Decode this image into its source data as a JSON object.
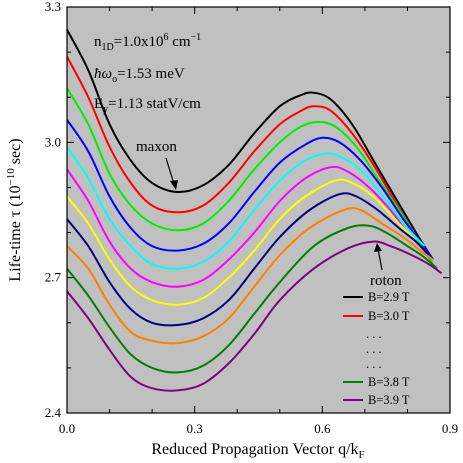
{
  "chart_data": {
    "type": "line",
    "xlabel": "Reduced Propagation Vector q/k",
    "xlabel_sub": "F",
    "ylabel": "Life-time τ (10",
    "ylabel_sup": "−10",
    "ylabel_tail": " sec)",
    "xlim": [
      0.0,
      0.9
    ],
    "ylim": [
      2.4,
      3.3
    ],
    "xticks": [
      0.0,
      0.3,
      0.6,
      0.9
    ],
    "xtick_labels": [
      "0.0",
      "0.3",
      "0.6",
      "0.9"
    ],
    "yticks": [
      2.4,
      2.7,
      3.0,
      3.3
    ],
    "ytick_labels": [
      "2.4",
      "2.7",
      "3.0",
      "3.3"
    ],
    "background": "#c0c0c0",
    "grid": false,
    "params": {
      "n_base": "n",
      "n_sub": "1D",
      "n_mid": "=1.0x10",
      "n_sup": "6",
      "n_unit": " cm",
      "n_unit_sup": "−1",
      "hw_text": "ħω",
      "hw_sub": "o",
      "hw_rest": "=1.53 meV",
      "e_base": "E",
      "e_sub": "y",
      "e_rest": "=1.13 statV/cm"
    },
    "annotations": {
      "maxon": "maxon",
      "roton": "roton"
    },
    "legend": {
      "placement": "bottom-right",
      "entries": [
        {
          "label": "B=2.9 T",
          "color": "#000000"
        },
        {
          "label": "B=3.0 T",
          "color": "#ff0000"
        },
        {
          "label": "B=3.8 T",
          "color": "#008000"
        },
        {
          "label": "B=3.9 T",
          "color": "#800080"
        }
      ],
      "dots": ". . ."
    },
    "series": [
      {
        "color": "#000000",
        "points": [
          [
            0.0,
            3.25
          ],
          [
            0.05,
            3.16
          ],
          [
            0.1,
            3.04
          ],
          [
            0.15,
            2.96
          ],
          [
            0.2,
            2.91
          ],
          [
            0.26,
            2.89
          ],
          [
            0.32,
            2.905
          ],
          [
            0.38,
            2.95
          ],
          [
            0.44,
            3.02
          ],
          [
            0.5,
            3.08
          ],
          [
            0.55,
            3.105
          ],
          [
            0.58,
            3.11
          ],
          [
            0.62,
            3.095
          ],
          [
            0.67,
            3.04
          ],
          [
            0.72,
            2.96
          ],
          [
            0.77,
            2.88
          ],
          [
            0.82,
            2.8
          ],
          [
            0.86,
            2.74
          ]
        ]
      },
      {
        "color": "#ff0000",
        "points": [
          [
            0.0,
            3.19
          ],
          [
            0.05,
            3.1
          ],
          [
            0.1,
            2.99
          ],
          [
            0.15,
            2.91
          ],
          [
            0.2,
            2.86
          ],
          [
            0.26,
            2.845
          ],
          [
            0.32,
            2.86
          ],
          [
            0.38,
            2.91
          ],
          [
            0.44,
            2.98
          ],
          [
            0.5,
            3.04
          ],
          [
            0.55,
            3.07
          ],
          [
            0.58,
            3.08
          ],
          [
            0.62,
            3.07
          ],
          [
            0.67,
            3.02
          ],
          [
            0.72,
            2.95
          ],
          [
            0.77,
            2.87
          ],
          [
            0.82,
            2.79
          ],
          [
            0.86,
            2.74
          ]
        ]
      },
      {
        "color": "#00ee00",
        "points": [
          [
            0.0,
            3.12
          ],
          [
            0.05,
            3.04
          ],
          [
            0.1,
            2.93
          ],
          [
            0.15,
            2.86
          ],
          [
            0.2,
            2.82
          ],
          [
            0.26,
            2.805
          ],
          [
            0.32,
            2.82
          ],
          [
            0.38,
            2.87
          ],
          [
            0.44,
            2.94
          ],
          [
            0.5,
            3.0
          ],
          [
            0.55,
            3.035
          ],
          [
            0.59,
            3.045
          ],
          [
            0.63,
            3.035
          ],
          [
            0.68,
            2.99
          ],
          [
            0.73,
            2.92
          ],
          [
            0.78,
            2.85
          ],
          [
            0.82,
            2.79
          ],
          [
            0.86,
            2.73
          ]
        ]
      },
      {
        "color": "#0000ff",
        "points": [
          [
            0.0,
            3.05
          ],
          [
            0.05,
            2.98
          ],
          [
            0.1,
            2.88
          ],
          [
            0.15,
            2.81
          ],
          [
            0.2,
            2.77
          ],
          [
            0.26,
            2.76
          ],
          [
            0.32,
            2.775
          ],
          [
            0.38,
            2.82
          ],
          [
            0.44,
            2.89
          ],
          [
            0.5,
            2.955
          ],
          [
            0.56,
            2.995
          ],
          [
            0.6,
            3.01
          ],
          [
            0.64,
            3.0
          ],
          [
            0.69,
            2.96
          ],
          [
            0.74,
            2.9
          ],
          [
            0.79,
            2.83
          ],
          [
            0.83,
            2.78
          ],
          [
            0.86,
            2.74
          ]
        ]
      },
      {
        "color": "#00ffff",
        "points": [
          [
            0.0,
            2.99
          ],
          [
            0.05,
            2.92
          ],
          [
            0.1,
            2.83
          ],
          [
            0.15,
            2.77
          ],
          [
            0.2,
            2.73
          ],
          [
            0.26,
            2.72
          ],
          [
            0.32,
            2.735
          ],
          [
            0.38,
            2.78
          ],
          [
            0.44,
            2.85
          ],
          [
            0.5,
            2.915
          ],
          [
            0.56,
            2.96
          ],
          [
            0.61,
            2.975
          ],
          [
            0.65,
            2.965
          ],
          [
            0.7,
            2.93
          ],
          [
            0.75,
            2.87
          ],
          [
            0.8,
            2.81
          ],
          [
            0.84,
            2.77
          ]
        ]
      },
      {
        "color": "#ff00ff",
        "points": [
          [
            0.0,
            2.94
          ],
          [
            0.05,
            2.87
          ],
          [
            0.1,
            2.78
          ],
          [
            0.15,
            2.72
          ],
          [
            0.2,
            2.69
          ],
          [
            0.26,
            2.68
          ],
          [
            0.32,
            2.695
          ],
          [
            0.38,
            2.74
          ],
          [
            0.44,
            2.8
          ],
          [
            0.5,
            2.87
          ],
          [
            0.56,
            2.92
          ],
          [
            0.62,
            2.945
          ],
          [
            0.66,
            2.935
          ],
          [
            0.71,
            2.9
          ],
          [
            0.76,
            2.85
          ],
          [
            0.8,
            2.8
          ],
          [
            0.84,
            2.76
          ]
        ]
      },
      {
        "color": "#ffff00",
        "points": [
          [
            0.0,
            2.88
          ],
          [
            0.05,
            2.82
          ],
          [
            0.1,
            2.74
          ],
          [
            0.15,
            2.68
          ],
          [
            0.2,
            2.65
          ],
          [
            0.26,
            2.64
          ],
          [
            0.32,
            2.655
          ],
          [
            0.38,
            2.7
          ],
          [
            0.44,
            2.76
          ],
          [
            0.5,
            2.83
          ],
          [
            0.56,
            2.88
          ],
          [
            0.63,
            2.915
          ],
          [
            0.67,
            2.91
          ],
          [
            0.72,
            2.88
          ],
          [
            0.77,
            2.83
          ],
          [
            0.81,
            2.79
          ],
          [
            0.84,
            2.76
          ]
        ]
      },
      {
        "color": "#000080",
        "points": [
          [
            0.0,
            2.83
          ],
          [
            0.05,
            2.77
          ],
          [
            0.1,
            2.69
          ],
          [
            0.15,
            2.63
          ],
          [
            0.2,
            2.6
          ],
          [
            0.26,
            2.595
          ],
          [
            0.32,
            2.61
          ],
          [
            0.38,
            2.65
          ],
          [
            0.44,
            2.72
          ],
          [
            0.5,
            2.79
          ],
          [
            0.57,
            2.85
          ],
          [
            0.64,
            2.885
          ],
          [
            0.68,
            2.88
          ],
          [
            0.73,
            2.85
          ],
          [
            0.78,
            2.81
          ],
          [
            0.82,
            2.78
          ],
          [
            0.85,
            2.75
          ]
        ]
      },
      {
        "color": "#ff8000",
        "points": [
          [
            0.0,
            2.77
          ],
          [
            0.05,
            2.72
          ],
          [
            0.1,
            2.64
          ],
          [
            0.15,
            2.58
          ],
          [
            0.2,
            2.56
          ],
          [
            0.26,
            2.555
          ],
          [
            0.32,
            2.57
          ],
          [
            0.38,
            2.61
          ],
          [
            0.44,
            2.68
          ],
          [
            0.5,
            2.75
          ],
          [
            0.57,
            2.81
          ],
          [
            0.65,
            2.85
          ],
          [
            0.69,
            2.85
          ],
          [
            0.74,
            2.82
          ],
          [
            0.79,
            2.79
          ],
          [
            0.83,
            2.76
          ],
          [
            0.86,
            2.74
          ]
        ]
      },
      {
        "color": "#008000",
        "points": [
          [
            0.0,
            2.72
          ],
          [
            0.05,
            2.66
          ],
          [
            0.1,
            2.59
          ],
          [
            0.15,
            2.53
          ],
          [
            0.2,
            2.5
          ],
          [
            0.26,
            2.49
          ],
          [
            0.32,
            2.505
          ],
          [
            0.38,
            2.55
          ],
          [
            0.44,
            2.62
          ],
          [
            0.5,
            2.69
          ],
          [
            0.58,
            2.77
          ],
          [
            0.66,
            2.81
          ],
          [
            0.71,
            2.815
          ],
          [
            0.75,
            2.8
          ],
          [
            0.8,
            2.77
          ],
          [
            0.84,
            2.745
          ],
          [
            0.87,
            2.72
          ]
        ]
      },
      {
        "color": "#800080",
        "points": [
          [
            0.0,
            2.67
          ],
          [
            0.05,
            2.61
          ],
          [
            0.1,
            2.54
          ],
          [
            0.15,
            2.48
          ],
          [
            0.2,
            2.455
          ],
          [
            0.26,
            2.45
          ],
          [
            0.32,
            2.465
          ],
          [
            0.38,
            2.51
          ],
          [
            0.44,
            2.575
          ],
          [
            0.5,
            2.65
          ],
          [
            0.58,
            2.72
          ],
          [
            0.66,
            2.765
          ],
          [
            0.72,
            2.78
          ],
          [
            0.76,
            2.77
          ],
          [
            0.81,
            2.75
          ],
          [
            0.85,
            2.73
          ],
          [
            0.88,
            2.71
          ]
        ]
      }
    ]
  }
}
